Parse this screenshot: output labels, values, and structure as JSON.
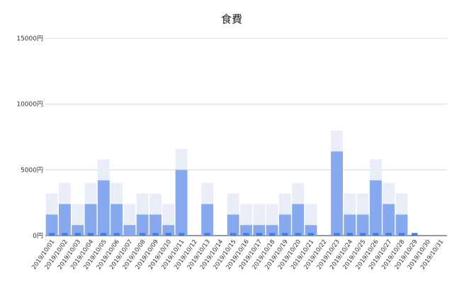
{
  "chart_data": {
    "type": "bar",
    "title": "食費",
    "xlabel": "",
    "ylabel": "",
    "ylim": [
      0,
      15000
    ],
    "ytick_labels": [
      "0円",
      "5000円",
      "10000円",
      "15000円"
    ],
    "ytick_values": [
      0,
      5000,
      10000,
      15000
    ],
    "grid": "horizontal",
    "legend": "none",
    "categories": [
      "2019/10/01",
      "2019/10/02",
      "2019/10/03",
      "2019/10/04",
      "2019/10/05",
      "2019/10/06",
      "2019/10/07",
      "2019/10/08",
      "2019/10/09",
      "2019/10/10",
      "2019/10/11",
      "2019/10/12",
      "2019/10/13",
      "2019/10/14",
      "2019/10/15",
      "2019/10/16",
      "2019/10/17",
      "2019/10/18",
      "2019/10/19",
      "2019/10/20",
      "2019/10/21",
      "2019/10/22",
      "2019/10/23",
      "2019/10/24",
      "2019/10/25",
      "2019/10/26",
      "2019/10/27",
      "2019/10/28",
      "2019/10/29",
      "2019/10/30",
      "2019/10/31"
    ],
    "series": [
      {
        "values": [
          200,
          200,
          200,
          200,
          200,
          200,
          0,
          200,
          200,
          200,
          200,
          0,
          200,
          0,
          200,
          200,
          200,
          200,
          200,
          200,
          200,
          0,
          200,
          200,
          200,
          200,
          200,
          200,
          200,
          0,
          0
        ]
      },
      {
        "values": [
          1600,
          2400,
          800,
          2400,
          4200,
          2400,
          800,
          1600,
          1600,
          800,
          5000,
          0,
          2400,
          0,
          1600,
          800,
          800,
          800,
          1600,
          2400,
          800,
          0,
          6400,
          1600,
          1600,
          4200,
          2400,
          1600,
          0,
          0,
          0
        ]
      }
    ],
    "colors": {
      "bar_dark": "#3d7ef0",
      "bar_mid": "#86a9f0",
      "bar_light": "#c9d6f4",
      "bar_faint": "#e9edf7",
      "grid": "#d4d4d4",
      "axis": "#333333"
    }
  }
}
